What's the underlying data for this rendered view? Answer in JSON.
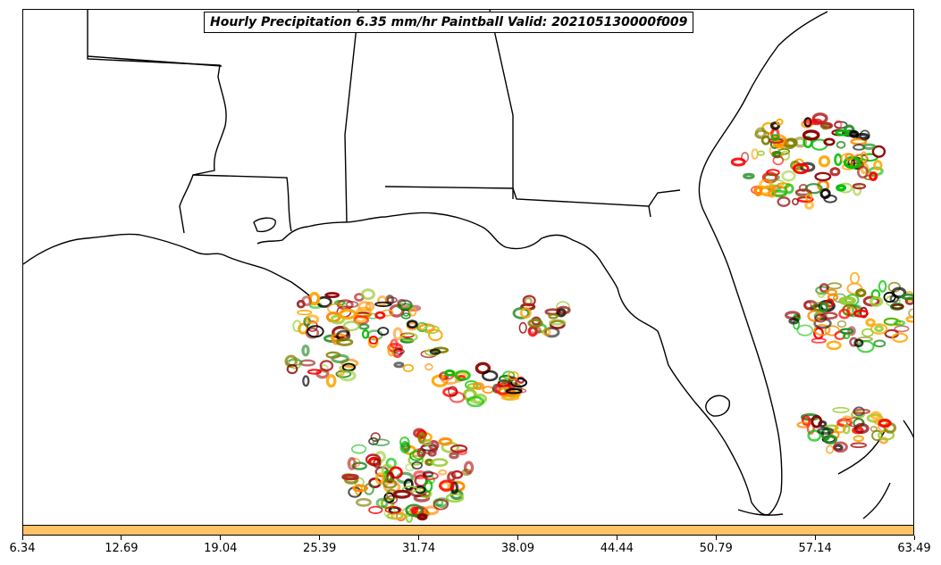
{
  "title": "Hourly Precipitation 6.35 mm/hr Paintball Valid: 202105130000f009",
  "colorbar": {
    "color": "#ffc266",
    "ticks": [
      "6.34",
      "12.69",
      "19.04",
      "25.39",
      "31.74",
      "38.09",
      "44.44",
      "50.79",
      "57.14",
      "63.49"
    ]
  },
  "paintball_colors": [
    "#8b0000",
    "#b22222",
    "#ff0000",
    "#ff8c00",
    "#ffa500",
    "#9acd32",
    "#808000",
    "#00c000",
    "#228b22",
    "#000000"
  ],
  "map": {
    "region": "U.S. Gulf Coast and Florida",
    "land_outline_color": "#000000"
  }
}
